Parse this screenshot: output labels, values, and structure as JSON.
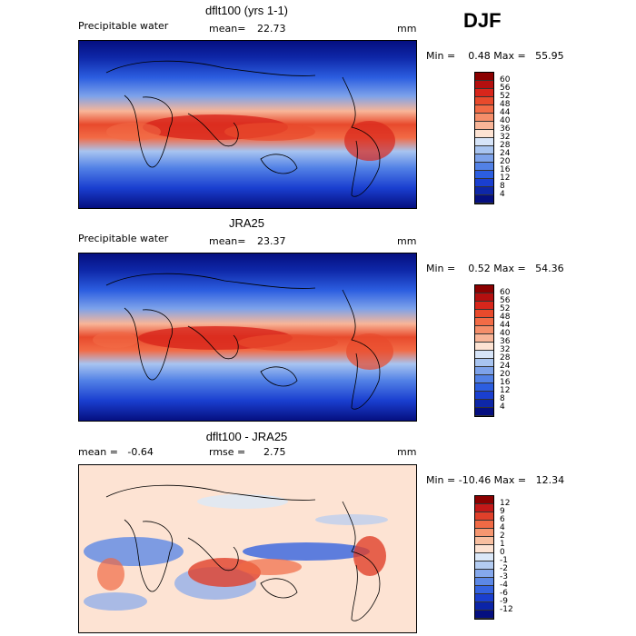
{
  "season": "DJF",
  "panels": [
    {
      "title": "dflt100 (yrs 1-1)",
      "left_label": "Precipitable water",
      "stat1": "mean=",
      "stat1_value": "22.73",
      "units": "mm",
      "minmax": "Min =    0.48 Max =   55.95",
      "colorbar": {
        "labels": [
          "60",
          "56",
          "52",
          "48",
          "44",
          "40",
          "36",
          "32",
          "28",
          "24",
          "20",
          "16",
          "12",
          "8",
          "4"
        ],
        "colors": [
          "#8b0000",
          "#b40f0f",
          "#d8261b",
          "#e84a2c",
          "#f26b46",
          "#f58e6a",
          "#f8b598",
          "#fde3d3",
          "#d6e4f8",
          "#a8c4f0",
          "#7da2ea",
          "#5281e6",
          "#2c5ee0",
          "#1a3fd0",
          "#0e27a8",
          "#050f80"
        ]
      }
    },
    {
      "title": "JRA25",
      "left_label": "Precipitable water",
      "stat1": "mean=",
      "stat1_value": "23.37",
      "units": "mm",
      "minmax": "Min =    0.52 Max =   54.36",
      "colorbar": {
        "labels": [
          "60",
          "56",
          "52",
          "48",
          "44",
          "40",
          "36",
          "32",
          "28",
          "24",
          "20",
          "16",
          "12",
          "8",
          "4"
        ],
        "colors": [
          "#8b0000",
          "#b40f0f",
          "#d8261b",
          "#e84a2c",
          "#f26b46",
          "#f58e6a",
          "#f8b598",
          "#fde3d3",
          "#d6e4f8",
          "#a8c4f0",
          "#7da2ea",
          "#5281e6",
          "#2c5ee0",
          "#1a3fd0",
          "#0e27a8",
          "#050f80"
        ]
      }
    },
    {
      "title": "dflt100 - JRA25",
      "left_label": "mean =   -0.64",
      "stat1": "rmse =",
      "stat1_value": "2.75",
      "units": "mm",
      "minmax": "Min = -10.46 Max =   12.34",
      "colorbar": {
        "labels": [
          "12",
          "9",
          "6",
          "4",
          "2",
          "1",
          "0",
          "-1",
          "-2",
          "-3",
          "-4",
          "-6",
          "-9",
          "-12"
        ],
        "colors": [
          "#8b0000",
          "#c41818",
          "#e0402a",
          "#f06a45",
          "#f59670",
          "#f8bfa0",
          "#fde3d3",
          "#dbe8f8",
          "#b3ccf2",
          "#85a8ec",
          "#5c88e6",
          "#3463e0",
          "#1a3fcf",
          "#0b24a8",
          "#050f80"
        ]
      }
    }
  ]
}
